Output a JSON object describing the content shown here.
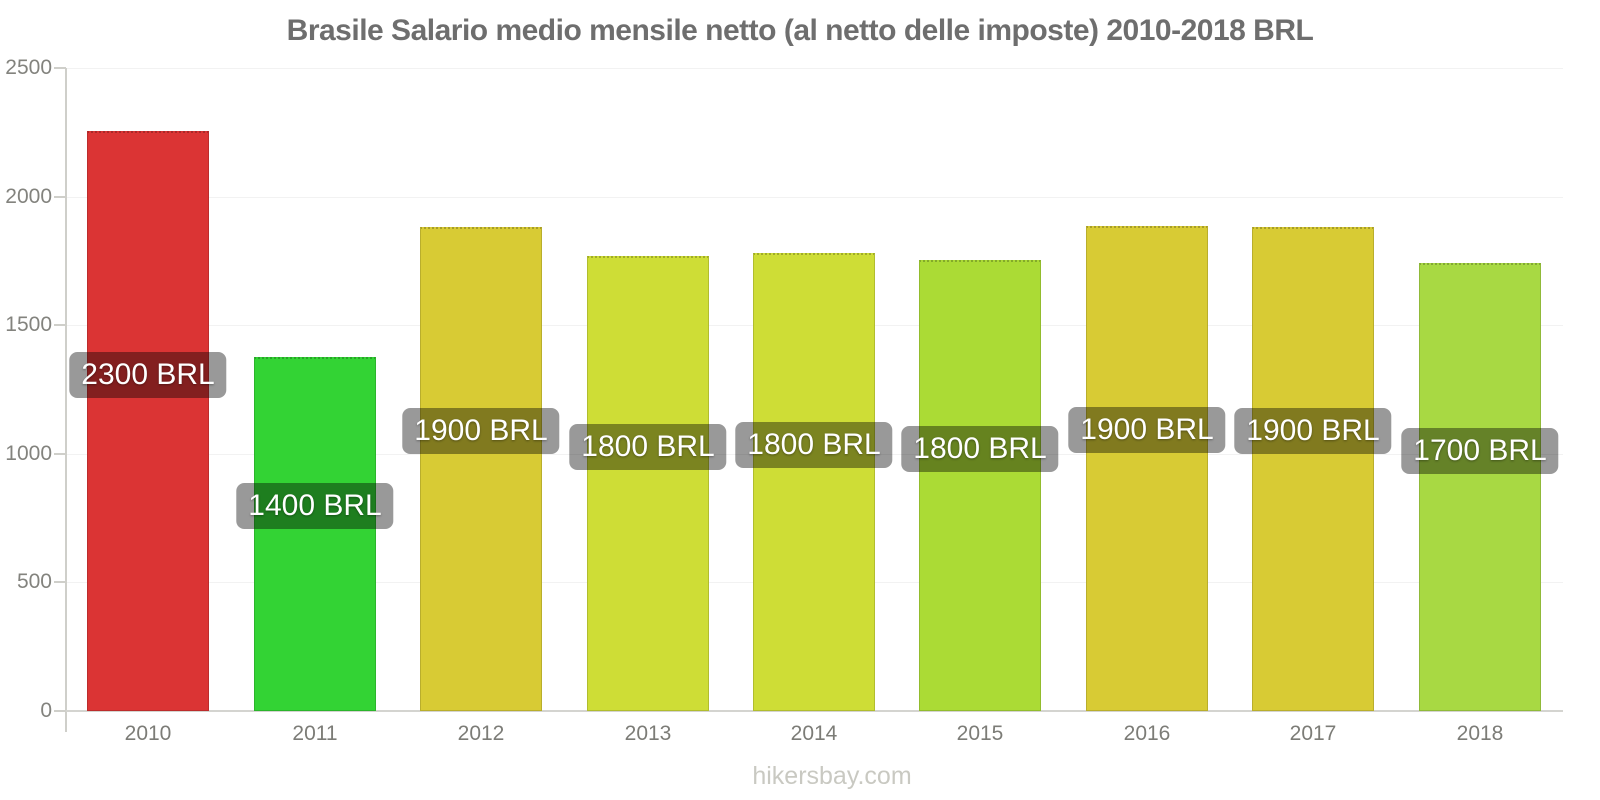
{
  "page": {
    "title": "Brasile Salario medio mensile netto (al netto delle imposte) 2010-2018 BRL",
    "watermark": "hikersbay.com"
  },
  "chart_data": {
    "type": "bar",
    "title": "Brasile Salario medio mensile netto (al netto delle imposte) 2010-2018 BRL",
    "categories": [
      "2010",
      "2011",
      "2012",
      "2013",
      "2014",
      "2015",
      "2016",
      "2017",
      "2018"
    ],
    "values": [
      2255,
      1375,
      1880,
      1770,
      1780,
      1755,
      1885,
      1880,
      1740
    ],
    "bar_labels": [
      "2300 BRL",
      "1400 BRL",
      "1900 BRL",
      "1800 BRL",
      "1800 BRL",
      "1800 BRL",
      "1900 BRL",
      "1900 BRL",
      "1700 BRL"
    ],
    "bar_colors": [
      "#db3434",
      "#33d334",
      "#d8cb34",
      "#cedd36",
      "#cedd36",
      "#abdb35",
      "#d8cb34",
      "#d8cb34",
      "#a8d943"
    ],
    "xlabel": "",
    "ylabel": "",
    "ylim": [
      0,
      2500
    ],
    "yticks": [
      0,
      500,
      1000,
      1500,
      2000,
      2500
    ],
    "grid": true,
    "legend": false,
    "value_label_bg": "rgba(0,0,0,0.4)",
    "value_label_color": "#ffffff",
    "axis_color": "#cfcfca",
    "gridline_color": "#f2f2f2",
    "tick_label_color": "#83837e"
  }
}
